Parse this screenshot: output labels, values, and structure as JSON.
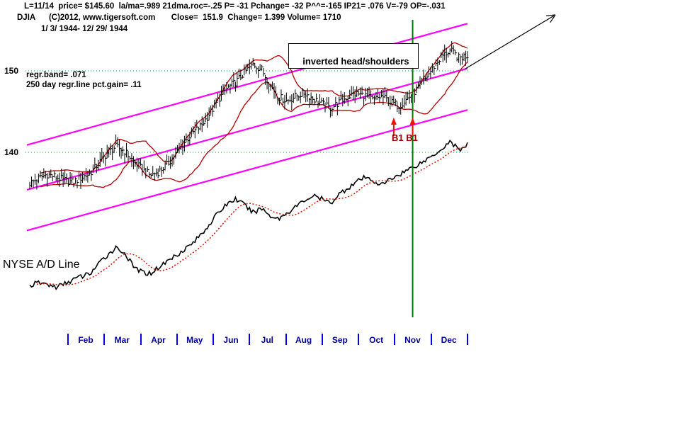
{
  "header": {
    "line1": "L=11/14  price= $145.60  la/ma=.989 21dma.roc=-.25 P= -31 Pchange= -32 P^^=-165 IP21= .076 V=-79 OP=-.031",
    "line2": "DJIA      (C)2012, www.tigersoft.com       Close=  151.9  Change= 1.399 Volume= 1710",
    "line3": "1/ 3/ 1944- 12/ 29/ 1944"
  },
  "annotations": {
    "pattern_label": "inverted head/shoulders",
    "regr_band": "regr.band= .071",
    "regr_line": "250 day regr.line pct.gain= .11",
    "signal_text": "B1 B1",
    "ad_label": "NYSE A/D Line"
  },
  "colors": {
    "channel": "#ff00ff",
    "price_bar": "#000000",
    "band": "#b40000",
    "ad_line": "#000000",
    "ad_ma": "#dd1100",
    "grid": "#009944",
    "vertical_line": "#007700",
    "signal_arrow": "#ee1100",
    "signal_text": "#a00000",
    "month_tick": "#0000ee",
    "month_label": "#00009c",
    "trend_arrow": "#000000"
  },
  "chart_data": {
    "type": "candlestick",
    "title": "DJIA 1/ 3/ 1944- 12/ 29/ 1944",
    "subtitle": "NYSE A/D Line lower panel",
    "y_ticks": [
      "150",
      "140"
    ],
    "y_axis": {
      "tick_prices": [
        150,
        140
      ],
      "visible_range": [
        133,
        156
      ]
    },
    "months": [
      "Feb",
      "Mar",
      "Apr",
      "May",
      "Jun",
      "Jul",
      "Aug",
      "Sep",
      "Oct",
      "Nov",
      "Dec"
    ],
    "weekly_closes": [
      136.2,
      136.8,
      137.3,
      137.0,
      136.6,
      136.3,
      136.9,
      137.4,
      138.6,
      139.9,
      140.7,
      140.2,
      139.0,
      138.0,
      137.2,
      137.6,
      138.5,
      139.8,
      141.2,
      142.4,
      143.3,
      144.8,
      146.5,
      147.9,
      148.6,
      149.8,
      150.8,
      150.2,
      148.3,
      146.8,
      146.3,
      146.9,
      147.3,
      146.6,
      146.0,
      145.4,
      146.1,
      146.8,
      147.2,
      147.0,
      146.4,
      146.9,
      146.2,
      145.7,
      146.6,
      147.6,
      148.9,
      150.4,
      151.8,
      152.5,
      151.6,
      151.9
    ],
    "ad_line_weekly": [
      4,
      6,
      5,
      3,
      5,
      8,
      10,
      12,
      18,
      24,
      29,
      26,
      17,
      13,
      12,
      16,
      20,
      24,
      28,
      32,
      38,
      45,
      52,
      58,
      61,
      57,
      52,
      55,
      50,
      48,
      52,
      56,
      60,
      63,
      61,
      58,
      64,
      68,
      72,
      75,
      73,
      70,
      74,
      77,
      80,
      83,
      86,
      90,
      94,
      99,
      93,
      97
    ],
    "regression_channel": {
      "pct_gain_250d": 0.11,
      "band_width": 0.071,
      "lines": [
        {
          "start_price": 140.9,
          "end_price": 155.8
        },
        {
          "start_price": 135.4,
          "end_price": 150.3
        },
        {
          "start_price": 130.4,
          "end_price": 145.2
        }
      ]
    },
    "vertical_line_week": 45.6,
    "signal": {
      "label": "B1 B1",
      "weeks": [
        43.4,
        45.6
      ]
    },
    "stats": {
      "close": 151.9,
      "change": 1.399,
      "volume": 1710,
      "price_label": 145.6
    }
  }
}
